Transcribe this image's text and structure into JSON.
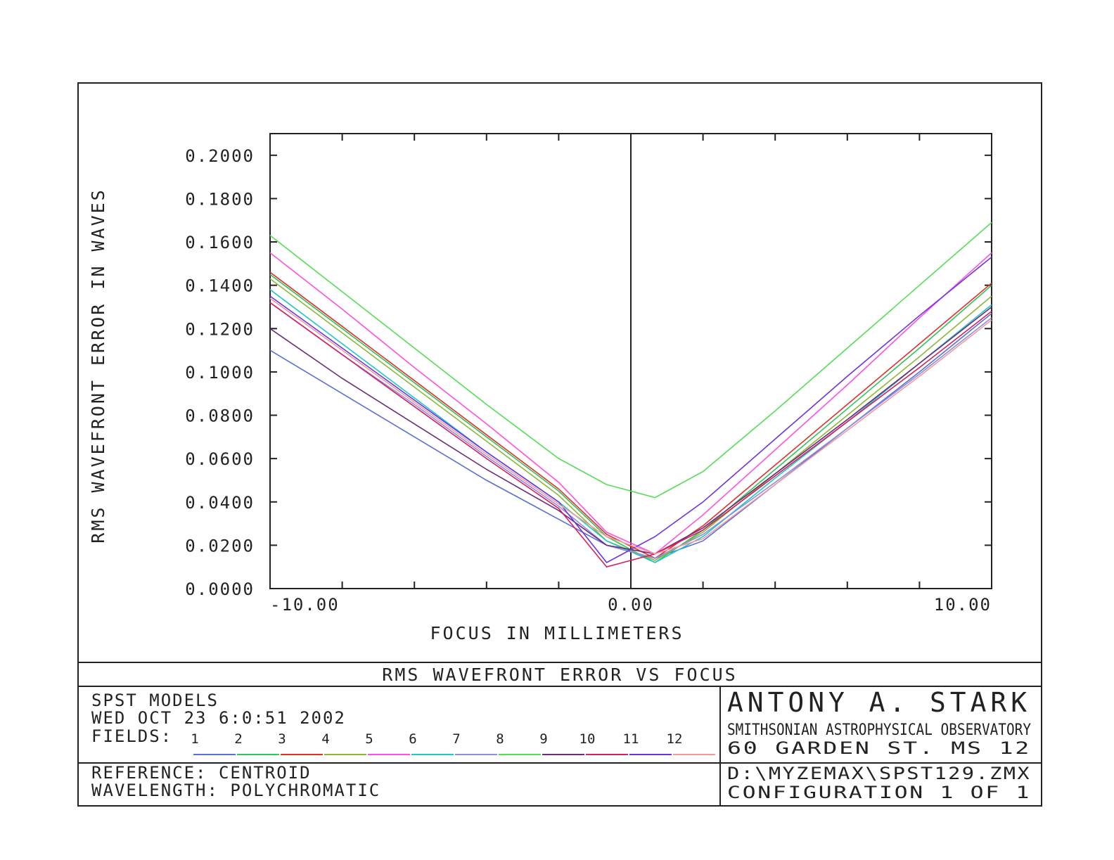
{
  "chart_title": "RMS WAVEFRONT ERROR VS FOCUS",
  "info": {
    "project": "SPST MODELS",
    "date": "WED OCT 23 6:0:51 2002",
    "fields_label": "FIELDS:",
    "reference": "REFERENCE: CENTROID",
    "wavelength": "WAVELENGTH: POLYCHROMATIC",
    "author": "ANTONY A. STARK",
    "institution": "SMITHSONIAN ASTROPHYSICAL OBSERVATORY",
    "address": "60 GARDEN ST. MS 12",
    "file": "D:\\MYZEMAX\\SPST129.ZMX",
    "configuration": "CONFIGURATION 1 OF 1"
  },
  "chart_data": {
    "type": "line",
    "title": "RMS WAVEFRONT ERROR VS FOCUS",
    "xlabel": "FOCUS IN MILLIMETERS",
    "ylabel": "RMS WAVEFRONT ERROR IN WAVES",
    "xlim": [
      -10,
      10
    ],
    "ylim": [
      0,
      0.21
    ],
    "x_tick_labels": [
      "-10.00",
      "0.00",
      "10.00"
    ],
    "x_tick_values": [
      -10,
      0,
      10
    ],
    "y_tick_labels": [
      "0.0000",
      "0.0200",
      "0.0400",
      "0.0600",
      "0.0800",
      "0.1000",
      "0.1200",
      "0.1400",
      "0.1600",
      "0.1800",
      "0.2000"
    ],
    "y_tick_values": [
      0,
      0.02,
      0.04,
      0.06,
      0.08,
      0.1,
      0.12,
      0.14,
      0.16,
      0.18,
      0.2
    ],
    "legend_position": "bottom",
    "grid": false,
    "x": [
      -10,
      -8,
      -6,
      -4,
      -2,
      -0.67,
      0.67,
      2,
      4,
      6,
      8,
      10
    ],
    "series": [
      {
        "name": "1",
        "color": "#5a6fd8",
        "values": [
          0.11,
          0.09,
          0.07,
          0.05,
          0.032,
          0.02,
          0.014,
          0.022,
          0.048,
          0.074,
          0.1,
          0.127
        ]
      },
      {
        "name": "2",
        "color": "#2ec45a",
        "values": [
          0.145,
          0.12,
          0.095,
          0.07,
          0.045,
          0.024,
          0.012,
          0.027,
          0.055,
          0.083,
          0.111,
          0.14
        ]
      },
      {
        "name": "3",
        "color": "#e62e2e",
        "values": [
          0.146,
          0.121,
          0.096,
          0.071,
          0.046,
          0.025,
          0.014,
          0.029,
          0.057,
          0.085,
          0.113,
          0.141
        ]
      },
      {
        "name": "4",
        "color": "#8db837",
        "values": [
          0.143,
          0.118,
          0.093,
          0.068,
          0.043,
          0.022,
          0.013,
          0.026,
          0.053,
          0.08,
          0.107,
          0.135
        ]
      },
      {
        "name": "5",
        "color": "#ff4fe0",
        "values": [
          0.155,
          0.129,
          0.102,
          0.076,
          0.049,
          0.026,
          0.016,
          0.034,
          0.064,
          0.094,
          0.125,
          0.155
        ]
      },
      {
        "name": "6",
        "color": "#1ec8c8",
        "values": [
          0.138,
          0.113,
          0.088,
          0.063,
          0.04,
          0.022,
          0.012,
          0.024,
          0.051,
          0.077,
          0.104,
          0.131
        ]
      },
      {
        "name": "7",
        "color": "#8e8ee0",
        "values": [
          0.132,
          0.108,
          0.085,
          0.061,
          0.038,
          0.02,
          0.014,
          0.025,
          0.049,
          0.074,
          0.099,
          0.125
        ]
      },
      {
        "name": "8",
        "color": "#55dd55",
        "values": [
          0.163,
          0.137,
          0.111,
          0.085,
          0.06,
          0.048,
          0.042,
          0.054,
          0.082,
          0.111,
          0.14,
          0.169
        ]
      },
      {
        "name": "9",
        "color": "#6a2d7a",
        "values": [
          0.12,
          0.097,
          0.076,
          0.055,
          0.036,
          0.02,
          0.016,
          0.028,
          0.053,
          0.078,
          0.104,
          0.13
        ]
      },
      {
        "name": "10",
        "color": "#d62060",
        "values": [
          0.132,
          0.108,
          0.084,
          0.06,
          0.037,
          0.01,
          0.016,
          0.027,
          0.052,
          0.077,
          0.102,
          0.128
        ]
      },
      {
        "name": "11",
        "color": "#6a35e0",
        "values": [
          0.135,
          0.111,
          0.087,
          0.063,
          0.04,
          0.012,
          0.024,
          0.04,
          0.069,
          0.098,
          0.126,
          0.153
        ]
      },
      {
        "name": "12",
        "color": "#f29a9a",
        "values": [
          0.134,
          0.11,
          0.086,
          0.062,
          0.039,
          0.024,
          0.016,
          0.023,
          0.048,
          0.073,
          0.098,
          0.124
        ]
      }
    ]
  }
}
